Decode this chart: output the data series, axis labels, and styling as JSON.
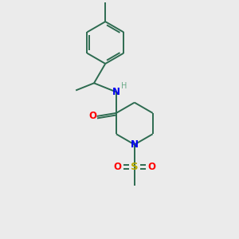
{
  "background_color": "#ebebeb",
  "bond_color": "#2d6b50",
  "atom_colors": {
    "N": "#0000ee",
    "O": "#ff0000",
    "S": "#bbaa00",
    "H": "#6aaa88",
    "C": "#2d6b50"
  },
  "figsize": [
    3.0,
    3.0
  ],
  "dpi": 100
}
